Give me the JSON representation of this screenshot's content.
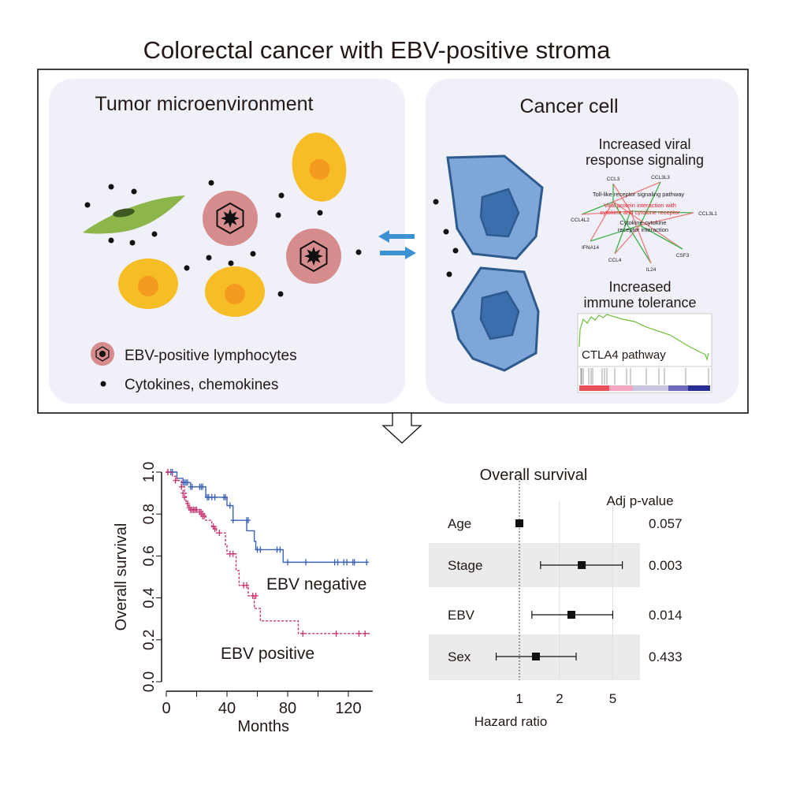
{
  "title": "Colorectal cancer with EBV-positive stroma",
  "left_panel": {
    "title": "Tumor microenvironment",
    "legend": [
      {
        "label": "EBV-positive lymphocytes",
        "icon": "ebv-lymphocyte-icon"
      },
      {
        "label": "Cytokines, chemokines",
        "icon": "dot-icon"
      }
    ]
  },
  "right_panel": {
    "title": "Cancer cell",
    "network": {
      "title_line1": "Increased viral",
      "title_line2": "response signaling",
      "genes": [
        "CCL3",
        "CCL3L3",
        "CCL3L1",
        "CCL4L2",
        "IFNA14",
        "CCL4",
        "IL24",
        "CSF3"
      ],
      "pathways": [
        {
          "l1": "Toll-like receptor signaling pathway",
          "l2": "",
          "color": "#222222"
        },
        {
          "l1": "Viral protein interaction with",
          "l2": "cytokine and cytokine receptor",
          "color": "#e8202a"
        },
        {
          "l1": "Cytokine-cytokine",
          "l2": "receptor interaction",
          "color": "#222222"
        }
      ]
    },
    "gsea": {
      "title_line1": "Increased",
      "title_line2": "immune tolerance",
      "label": "CTLA4 pathway"
    }
  },
  "colors": {
    "panel_bg": "#eff0f8",
    "blue_line": "#3a62b5",
    "pink_line": "#c8336f",
    "cell_yellow": "#f6bd26",
    "cell_orange": "#f39a1f",
    "lymph": "#d68c8c",
    "cancer_blue": "#7fa6d8",
    "cancer_border": "#2e5a8e"
  },
  "chart_data": [
    {
      "type": "line",
      "subtype": "kaplan-meier",
      "xlabel": "Months",
      "ylabel": "Overall survival",
      "xlim": [
        0,
        140
      ],
      "ylim": [
        0,
        1
      ],
      "xticks": [
        "0",
        "40",
        "80",
        "120"
      ],
      "yticks": [
        "0.0",
        "0.2",
        "0.4",
        "0.6",
        "0.8",
        "1.0"
      ],
      "series": [
        {
          "name": "EBV negative",
          "color": "#3a62b5",
          "dash": false,
          "steps": [
            [
              0,
              1
            ],
            [
              7,
              0.97
            ],
            [
              11,
              0.95
            ],
            [
              16,
              0.93
            ],
            [
              26,
              0.88
            ],
            [
              40,
              0.84
            ],
            [
              44,
              0.77
            ],
            [
              53,
              0.72
            ],
            [
              58,
              0.67
            ],
            [
              59,
              0.63
            ],
            [
              77,
              0.57
            ],
            [
              133,
              0.57
            ]
          ],
          "censored": [
            [
              1,
              1
            ],
            [
              3,
              1
            ],
            [
              4,
              1
            ],
            [
              11,
              0.95
            ],
            [
              12,
              0.95
            ],
            [
              13,
              0.95
            ],
            [
              14,
              0.95
            ],
            [
              16,
              0.93
            ],
            [
              17,
              0.93
            ],
            [
              22,
              0.93
            ],
            [
              23,
              0.93
            ],
            [
              24,
              0.93
            ],
            [
              27,
              0.88
            ],
            [
              28,
              0.88
            ],
            [
              30,
              0.88
            ],
            [
              32,
              0.88
            ],
            [
              38,
              0.88
            ],
            [
              39,
              0.88
            ],
            [
              42,
              0.84
            ],
            [
              44,
              0.77
            ],
            [
              53,
              0.77
            ],
            [
              54,
              0.77
            ],
            [
              60,
              0.63
            ],
            [
              62,
              0.63
            ],
            [
              73,
              0.63
            ],
            [
              75,
              0.63
            ],
            [
              80,
              0.57
            ],
            [
              92,
              0.57
            ],
            [
              111,
              0.57
            ],
            [
              113,
              0.57
            ],
            [
              117,
              0.57
            ],
            [
              119,
              0.57
            ],
            [
              123,
              0.57
            ],
            [
              124,
              0.57
            ],
            [
              132,
              0.57
            ]
          ]
        },
        {
          "name": "EBV positive",
          "color": "#c8336f",
          "dash": true,
          "steps": [
            [
              0,
              1
            ],
            [
              4,
              0.98
            ],
            [
              7,
              0.96
            ],
            [
              10,
              0.93
            ],
            [
              12,
              0.9
            ],
            [
              13,
              0.86
            ],
            [
              14,
              0.84
            ],
            [
              16,
              0.82
            ],
            [
              24,
              0.8
            ],
            [
              26,
              0.77
            ],
            [
              30,
              0.74
            ],
            [
              33,
              0.71
            ],
            [
              39,
              0.65
            ],
            [
              40,
              0.61
            ],
            [
              46,
              0.53
            ],
            [
              48,
              0.46
            ],
            [
              54,
              0.41
            ],
            [
              58,
              0.35
            ],
            [
              62,
              0.29
            ],
            [
              87,
              0.23
            ],
            [
              135,
              0.23
            ]
          ],
          "censored": [
            [
              1,
              1
            ],
            [
              6,
              0.96
            ],
            [
              10,
              0.93
            ],
            [
              11,
              0.9
            ],
            [
              12,
              0.88
            ],
            [
              14,
              0.85
            ],
            [
              15,
              0.83
            ],
            [
              16,
              0.82
            ],
            [
              17,
              0.82
            ],
            [
              18,
              0.82
            ],
            [
              19,
              0.82
            ],
            [
              20,
              0.82
            ],
            [
              22,
              0.81
            ],
            [
              23,
              0.8
            ],
            [
              24,
              0.79
            ],
            [
              25,
              0.79
            ],
            [
              31,
              0.74
            ],
            [
              32,
              0.73
            ],
            [
              35,
              0.71
            ],
            [
              42,
              0.61
            ],
            [
              44,
              0.61
            ],
            [
              51,
              0.46
            ],
            [
              53,
              0.46
            ],
            [
              57,
              0.41
            ],
            [
              59,
              0.41
            ],
            [
              90,
              0.23
            ],
            [
              112,
              0.23
            ],
            [
              127,
              0.23
            ],
            [
              131,
              0.23
            ]
          ]
        }
      ]
    },
    {
      "type": "forest",
      "title": "Overall survival",
      "xlabel": "Hazard ratio",
      "xscale": "log",
      "xticks": [
        "1",
        "2",
        "5"
      ],
      "pvalue_header": "Adj p-value",
      "rows": [
        {
          "label": "Age",
          "hr": 1.0,
          "lo": 1.0,
          "hi": 1.0,
          "p": "0.057",
          "shaded": false
        },
        {
          "label": "Stage",
          "hr": 2.93,
          "lo": 1.44,
          "hi": 5.9,
          "p": "0.003",
          "shaded": true
        },
        {
          "label": "EBV",
          "hr": 2.45,
          "lo": 1.24,
          "hi": 5.0,
          "p": "0.014",
          "shaded": false
        },
        {
          "label": "Sex",
          "hr": 1.33,
          "lo": 0.67,
          "hi": 2.66,
          "p": "0.433",
          "shaded": true
        }
      ]
    }
  ]
}
